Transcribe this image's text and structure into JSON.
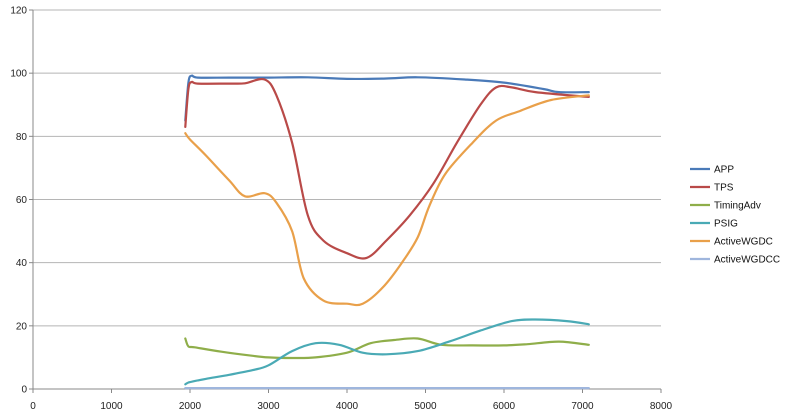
{
  "chart_data": {
    "type": "line",
    "title": "",
    "xlabel": "",
    "ylabel": "",
    "xlim": [
      0,
      8000
    ],
    "ylim": [
      0,
      120
    ],
    "x_ticks": [
      "0",
      "1000",
      "2000",
      "3000",
      "4000",
      "5000",
      "6000",
      "7000",
      "8000"
    ],
    "y_ticks": [
      "0",
      "20",
      "40",
      "60",
      "80",
      "100",
      "120"
    ],
    "grid": "horizontal",
    "legend_position": "right",
    "series": [
      {
        "name": "APP",
        "color": "#4a7ab8",
        "points": [
          [
            1940,
            85
          ],
          [
            1980,
            97
          ],
          [
            2020,
            99.2
          ],
          [
            2100,
            98.6
          ],
          [
            2500,
            98.6
          ],
          [
            3000,
            98.6
          ],
          [
            3500,
            98.7
          ],
          [
            4000,
            98.2
          ],
          [
            4500,
            98.3
          ],
          [
            4900,
            98.7
          ],
          [
            5500,
            98.0
          ],
          [
            6000,
            97.0
          ],
          [
            6500,
            95.0
          ],
          [
            6700,
            94.0
          ],
          [
            7080,
            94.0
          ]
        ]
      },
      {
        "name": "TPS",
        "color": "#b94a48",
        "points": [
          [
            1940,
            83
          ],
          [
            1980,
            95
          ],
          [
            2020,
            97.2
          ],
          [
            2100,
            96.7
          ],
          [
            2500,
            96.7
          ],
          [
            2700,
            96.8
          ],
          [
            2950,
            98.0
          ],
          [
            3100,
            93.0
          ],
          [
            3300,
            78.0
          ],
          [
            3500,
            55.0
          ],
          [
            3700,
            47.0
          ],
          [
            4000,
            43.0
          ],
          [
            4250,
            41.5
          ],
          [
            4500,
            47.0
          ],
          [
            4800,
            55.0
          ],
          [
            5100,
            65.0
          ],
          [
            5400,
            78.0
          ],
          [
            5700,
            90.0
          ],
          [
            5900,
            95.5
          ],
          [
            6100,
            95.5
          ],
          [
            6400,
            94.0
          ],
          [
            7080,
            92.5
          ]
        ]
      },
      {
        "name": "TimingAdv",
        "color": "#8fae4a",
        "points": [
          [
            1940,
            16
          ],
          [
            1980,
            13.5
          ],
          [
            2060,
            13.2
          ],
          [
            2400,
            11.8
          ],
          [
            2800,
            10.5
          ],
          [
            3000,
            10.0
          ],
          [
            3300,
            9.8
          ],
          [
            3600,
            10.0
          ],
          [
            4000,
            11.5
          ],
          [
            4300,
            14.5
          ],
          [
            4600,
            15.5
          ],
          [
            4900,
            16.0
          ],
          [
            5200,
            14.0
          ],
          [
            5600,
            13.8
          ],
          [
            6000,
            13.8
          ],
          [
            6300,
            14.2
          ],
          [
            6700,
            15.0
          ],
          [
            7080,
            14.0
          ]
        ]
      },
      {
        "name": "PSIG",
        "color": "#4aaab5",
        "points": [
          [
            1940,
            1.5
          ],
          [
            2000,
            2.2
          ],
          [
            2200,
            3.2
          ],
          [
            2500,
            4.5
          ],
          [
            2800,
            6.0
          ],
          [
            3000,
            7.5
          ],
          [
            3300,
            12.0
          ],
          [
            3600,
            14.5
          ],
          [
            3900,
            14.0
          ],
          [
            4200,
            11.5
          ],
          [
            4500,
            11.0
          ],
          [
            4900,
            12.0
          ],
          [
            5300,
            15.0
          ],
          [
            5700,
            18.5
          ],
          [
            6100,
            21.5
          ],
          [
            6400,
            22.0
          ],
          [
            6800,
            21.5
          ],
          [
            7080,
            20.5
          ]
        ]
      },
      {
        "name": "ActiveWGDC",
        "color": "#e9a04a",
        "points": [
          [
            1940,
            81
          ],
          [
            2000,
            79
          ],
          [
            2200,
            74
          ],
          [
            2500,
            66
          ],
          [
            2700,
            61
          ],
          [
            2950,
            62
          ],
          [
            3100,
            59
          ],
          [
            3300,
            50
          ],
          [
            3450,
            35
          ],
          [
            3700,
            28
          ],
          [
            4000,
            27
          ],
          [
            4200,
            27
          ],
          [
            4450,
            32
          ],
          [
            4700,
            40
          ],
          [
            4900,
            48
          ],
          [
            5050,
            58
          ],
          [
            5250,
            68
          ],
          [
            5600,
            78
          ],
          [
            5900,
            85
          ],
          [
            6200,
            88
          ],
          [
            6600,
            91.5
          ],
          [
            7080,
            93
          ]
        ]
      },
      {
        "name": "ActiveWGDCC",
        "color": "#9fb6dd",
        "points": [
          [
            1940,
            0.3
          ],
          [
            7080,
            0.3
          ]
        ]
      }
    ]
  }
}
